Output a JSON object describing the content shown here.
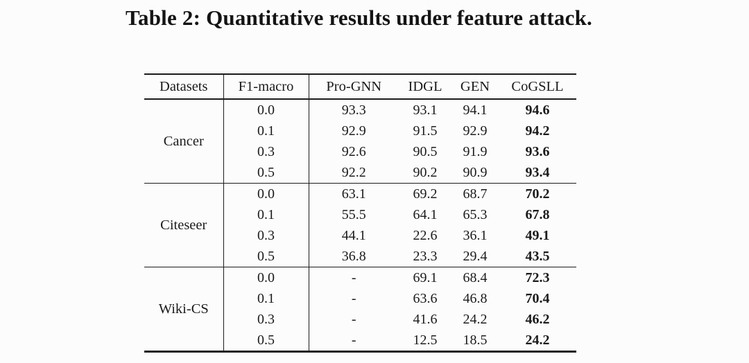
{
  "caption": "Table 2: Quantitative results under feature attack.",
  "colors": {
    "background": "#fcfcfc",
    "text": "#1b1b1b",
    "rule": "#1b1b1b"
  },
  "table": {
    "headers": [
      "Datasets",
      "F1-macro",
      "Pro-GNN",
      "IDGL",
      "GEN",
      "CoGSLL"
    ],
    "bold_column": "CoGSLL",
    "groups": [
      {
        "dataset": "Cancer",
        "rows": [
          {
            "f1": "0.0",
            "values": [
              "93.3",
              "93.1",
              "94.1",
              "94.6"
            ]
          },
          {
            "f1": "0.1",
            "values": [
              "92.9",
              "91.5",
              "92.9",
              "94.2"
            ]
          },
          {
            "f1": "0.3",
            "values": [
              "92.6",
              "90.5",
              "91.9",
              "93.6"
            ]
          },
          {
            "f1": "0.5",
            "values": [
              "92.2",
              "90.2",
              "90.9",
              "93.4"
            ]
          }
        ]
      },
      {
        "dataset": "Citeseer",
        "rows": [
          {
            "f1": "0.0",
            "values": [
              "63.1",
              "69.2",
              "68.7",
              "70.2"
            ]
          },
          {
            "f1": "0.1",
            "values": [
              "55.5",
              "64.1",
              "65.3",
              "67.8"
            ]
          },
          {
            "f1": "0.3",
            "values": [
              "44.1",
              "22.6",
              "36.1",
              "49.1"
            ]
          },
          {
            "f1": "0.5",
            "values": [
              "36.8",
              "23.3",
              "29.4",
              "43.5"
            ]
          }
        ]
      },
      {
        "dataset": "Wiki-CS",
        "rows": [
          {
            "f1": "0.0",
            "values": [
              "-",
              "69.1",
              "68.4",
              "72.3"
            ]
          },
          {
            "f1": "0.1",
            "values": [
              "-",
              "63.6",
              "46.8",
              "70.4"
            ]
          },
          {
            "f1": "0.3",
            "values": [
              "-",
              "41.6",
              "24.2",
              "46.2"
            ]
          },
          {
            "f1": "0.5",
            "values": [
              "-",
              "12.5",
              "18.5",
              "24.2"
            ]
          }
        ]
      }
    ]
  }
}
